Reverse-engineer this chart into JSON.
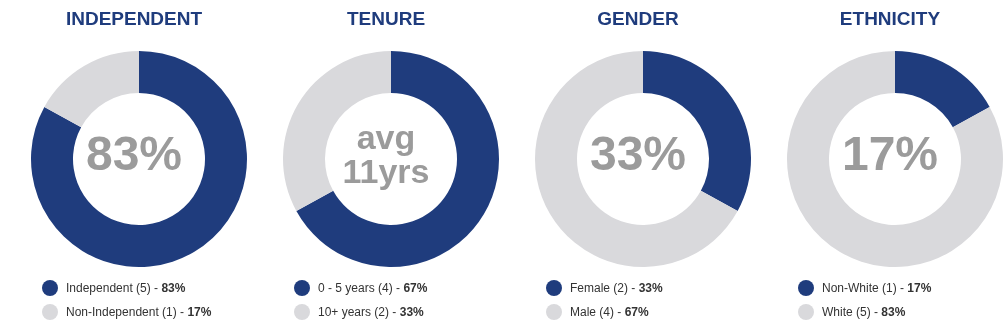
{
  "chart_data": [
    {
      "type": "donut",
      "title": "INDEPENDENT",
      "categories": [
        "Independent (5) -",
        "Non-Independent (1) -"
      ],
      "values": [
        83,
        17
      ],
      "colors": [
        "#1f3c7d",
        "#d9d9dc"
      ],
      "value_labels": [
        "83%",
        "17%"
      ],
      "annotations": [
        "83%"
      ],
      "legend": "bottom"
    },
    {
      "type": "donut",
      "title": "TENURE",
      "categories": [
        "0 - 5 years (4) -",
        "10+ years (2) -"
      ],
      "values": [
        67,
        33
      ],
      "colors": [
        "#1f3c7d",
        "#d9d9dc"
      ],
      "value_labels": [
        "67%",
        "33%"
      ],
      "annotations": [
        "avg",
        "11yrs"
      ],
      "legend": "bottom"
    },
    {
      "type": "donut",
      "title": "GENDER",
      "categories": [
        "Female (2) -",
        "Male (4) -"
      ],
      "values": [
        33,
        67
      ],
      "colors": [
        "#1f3c7d",
        "#d9d9dc"
      ],
      "value_labels": [
        "33%",
        "67%"
      ],
      "annotations": [
        "33%"
      ],
      "legend": "bottom"
    },
    {
      "type": "donut",
      "title": "ETHNICITY",
      "categories": [
        "Non-White (1) -",
        "White (5) -"
      ],
      "values": [
        17,
        83
      ],
      "colors": [
        "#1f3c7d",
        "#d9d9dc"
      ],
      "value_labels": [
        "17%",
        "83%"
      ],
      "annotations": [
        "17%"
      ],
      "legend": "bottom"
    }
  ]
}
